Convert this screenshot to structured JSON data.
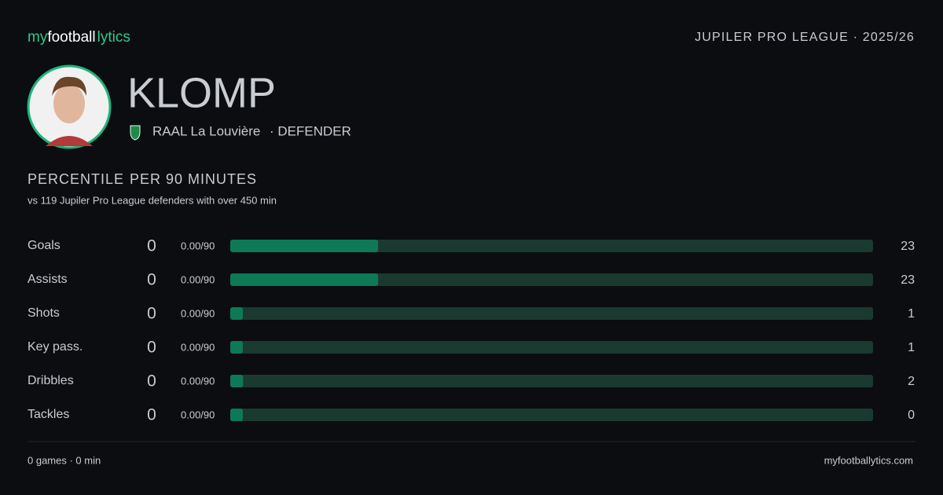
{
  "logo": [
    "my",
    "football",
    "lytics"
  ],
  "league": "JUPILER PRO LEAGUE · 2025/26",
  "player": {
    "name": "KLOMP",
    "club": "RAAL La Louvière",
    "position": "· DEFENDER"
  },
  "chart_data": {
    "type": "hbar",
    "title": "PERCENTILE",
    "subtitle": "PER 90 MINUTES",
    "note": "vs 119 Jupiler Pro League defenders with over 450 min",
    "categories": [
      "Goals",
      "Assists",
      "Shots",
      "Key pass.",
      "Dribbles",
      "Tackles"
    ],
    "totals": [
      0,
      0,
      0,
      0,
      0,
      0
    ],
    "per90": [
      "0.00/90",
      "0.00/90",
      "0.00/90",
      "0.00/90",
      "0.00/90",
      "0.00/90"
    ],
    "values": [
      23,
      23,
      1,
      1,
      2,
      0
    ],
    "xlim": [
      0,
      100
    ],
    "color": "#0e7a55",
    "track_color": "#1a3a2f"
  },
  "footer": {
    "left": "0 games · 0 min",
    "right": "myfootballytics.com"
  }
}
